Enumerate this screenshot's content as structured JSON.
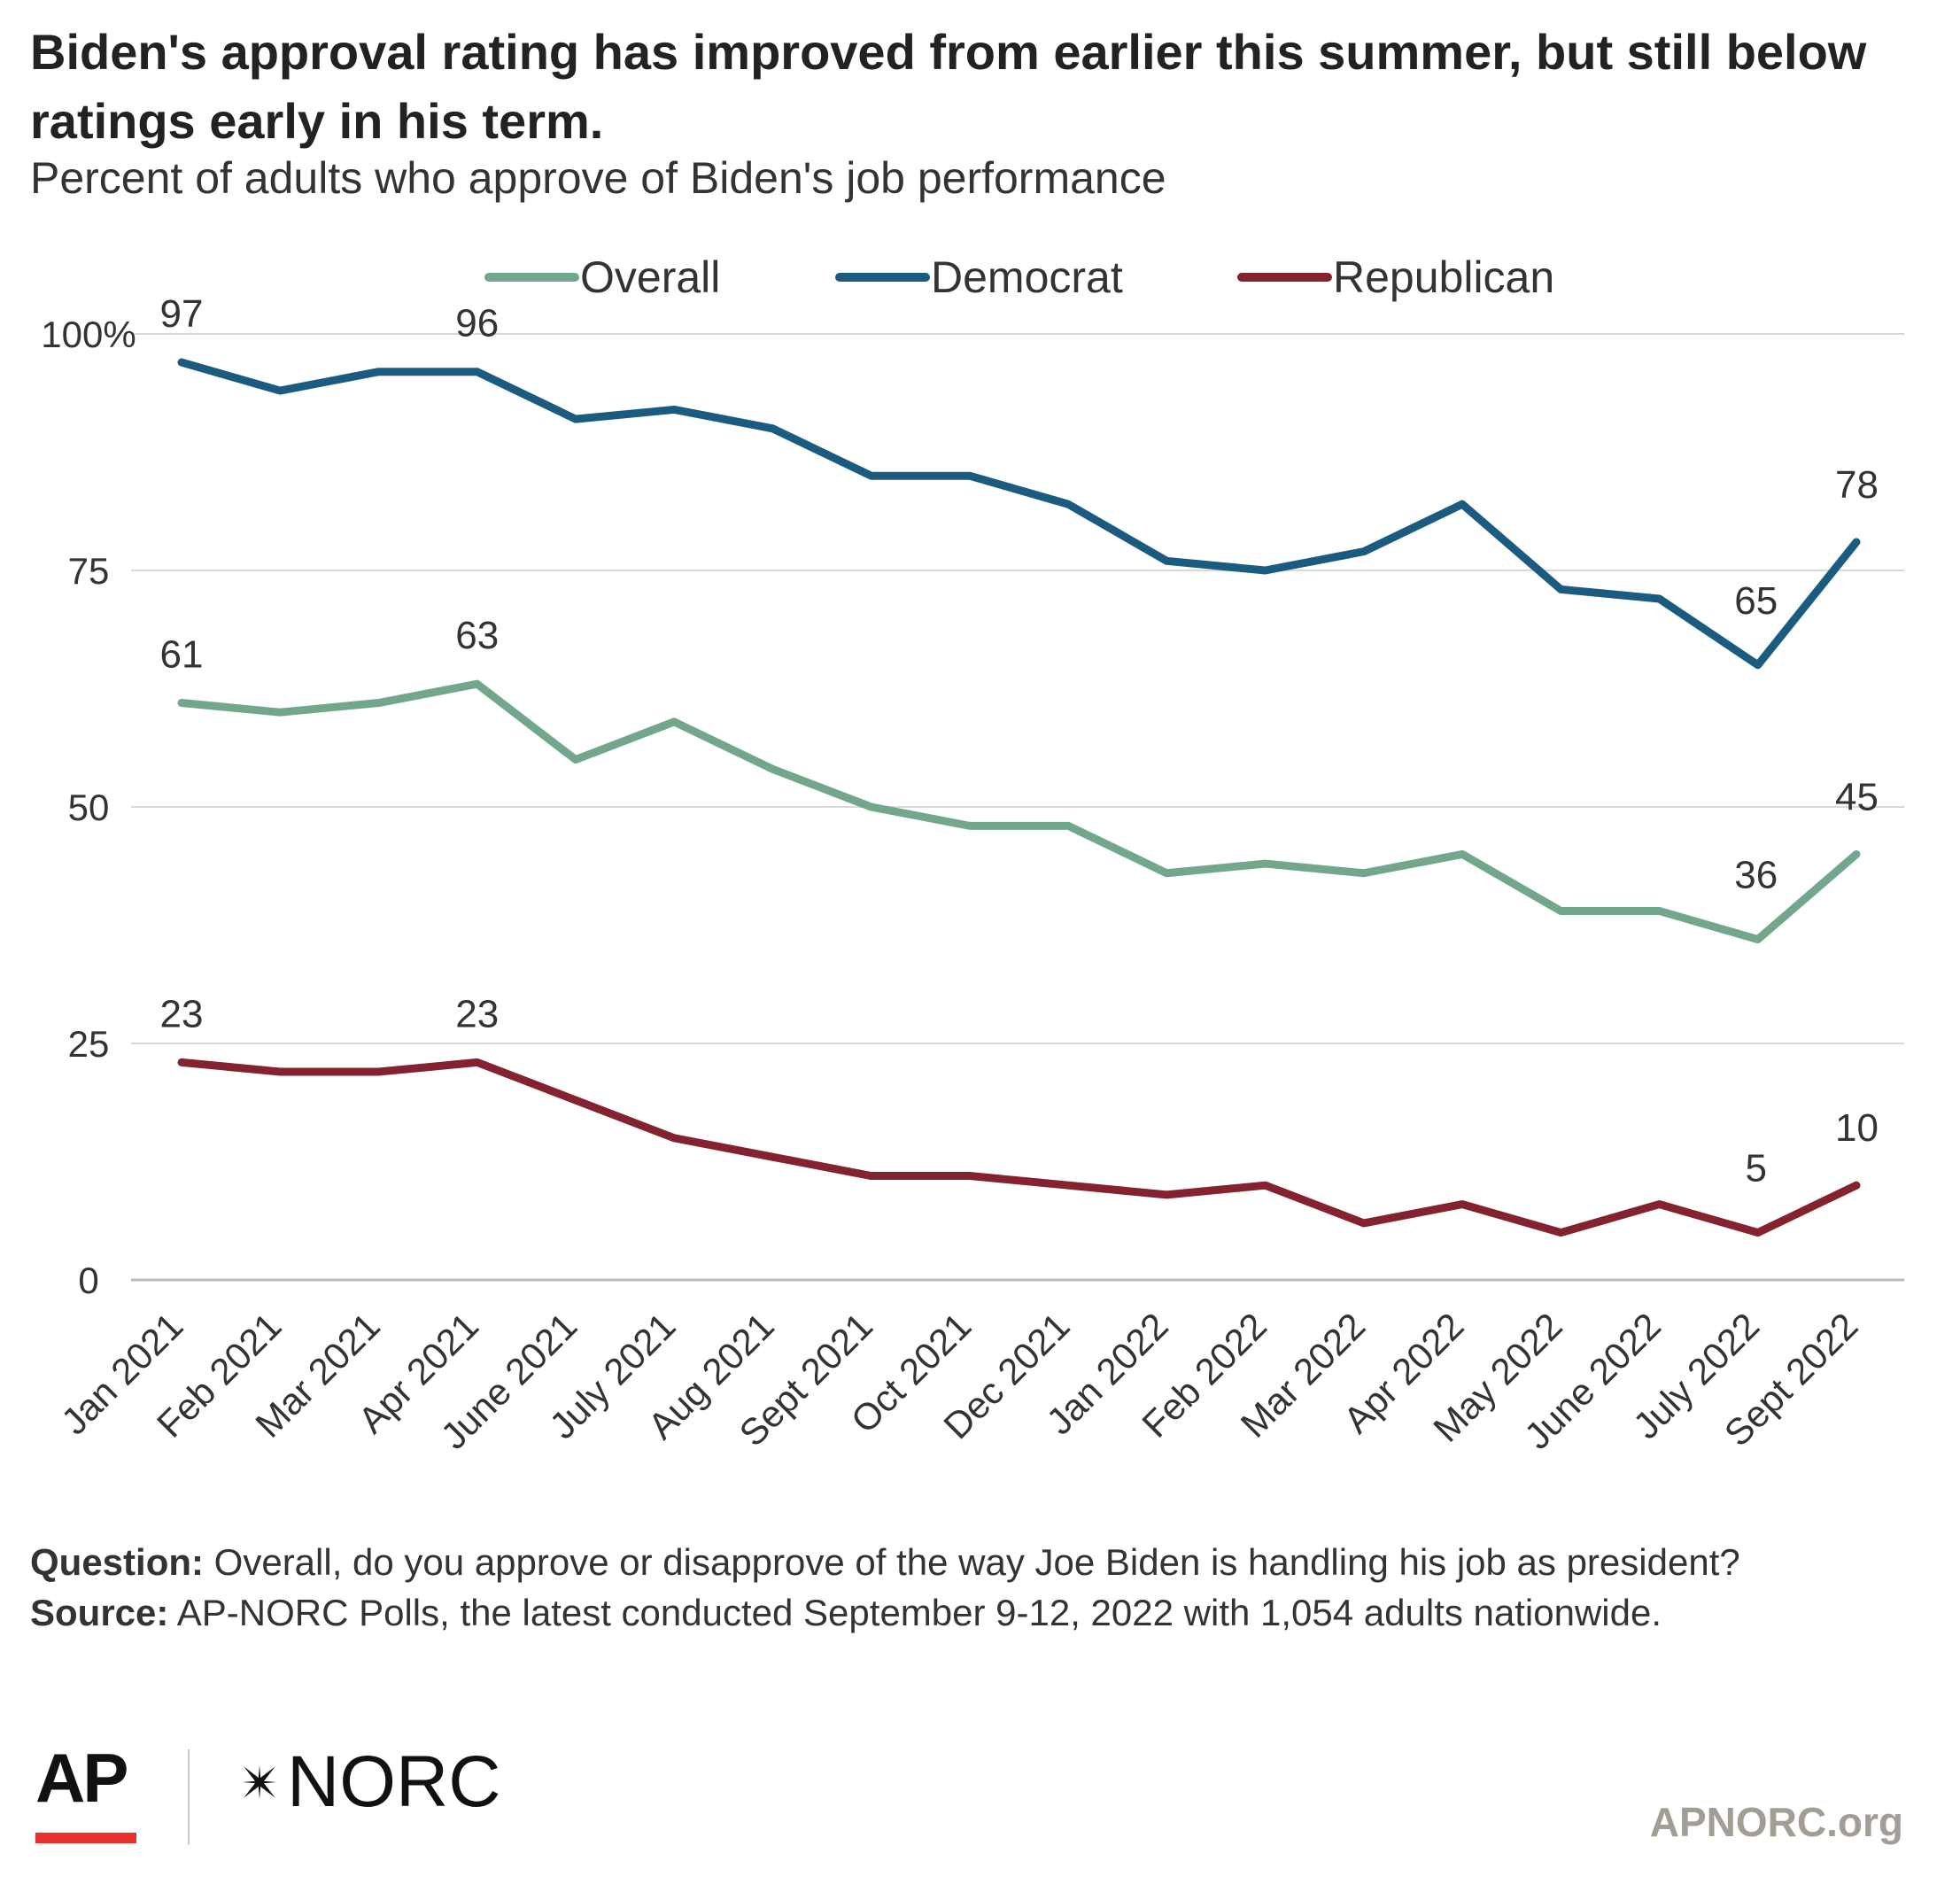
{
  "title": "Biden's approval rating has improved from earlier this summer, but still below ratings early in his term.",
  "subtitle": "Percent of adults who approve of Biden's job performance",
  "notes": {
    "question_label": "Question:",
    "question_text": " Overall, do you approve or disapprove of the way Joe Biden is handling his job as president?",
    "source_label": "Source:",
    "source_text": " AP-NORC Polls, the latest conducted September 9-12, 2022 with 1,054 adults nationwide."
  },
  "logos": {
    "ap": "AP",
    "norc": "NORC",
    "norc_icon": "star-icon",
    "site": "APNORC.org"
  },
  "chart_data": {
    "type": "line",
    "title": "Biden's approval rating has improved from earlier this summer, but still below ratings early in his term.",
    "subtitle": "Percent of adults who approve of Biden's job performance",
    "xlabel": "",
    "ylabel": "",
    "ylim": [
      0,
      100
    ],
    "yticks": [
      0,
      25,
      50,
      75,
      100
    ],
    "ytick_labels": [
      "0",
      "25",
      "50",
      "75",
      "100%"
    ],
    "grid": true,
    "legend_position": "top-center",
    "categories": [
      "Jan 2021",
      "Feb 2021",
      "Mar 2021",
      "Apr 2021",
      "June 2021",
      "July 2021",
      "Aug 2021",
      "Sept 2021",
      "Oct 2021",
      "Dec 2021",
      "Jan 2022",
      "Feb 2022",
      "Mar 2022",
      "Apr 2022",
      "May 2022",
      "June 2022",
      "July 2022",
      "Sept 2022"
    ],
    "series": [
      {
        "name": "Overall",
        "color": "#73a78b",
        "values": [
          61,
          60,
          61,
          63,
          55,
          59,
          54,
          50,
          48,
          48,
          43,
          44,
          43,
          45,
          39,
          39,
          36,
          45
        ],
        "labels": [
          {
            "index": 0,
            "text": "61"
          },
          {
            "index": 3,
            "text": "63"
          },
          {
            "index": 16,
            "text": "36"
          },
          {
            "index": 17,
            "text": "45"
          }
        ]
      },
      {
        "name": "Democrat",
        "color": "#1c5b80",
        "values": [
          97,
          94,
          96,
          96,
          91,
          92,
          90,
          85,
          85,
          82,
          76,
          75,
          77,
          82,
          73,
          72,
          65,
          78
        ],
        "labels": [
          {
            "index": 0,
            "text": "97"
          },
          {
            "index": 3,
            "text": "96"
          },
          {
            "index": 16,
            "text": "65"
          },
          {
            "index": 17,
            "text": "78"
          }
        ]
      },
      {
        "name": "Republican",
        "color": "#84232f",
        "values": [
          23,
          22,
          22,
          23,
          19,
          15,
          13,
          11,
          11,
          10,
          9,
          10,
          6,
          8,
          5,
          8,
          5,
          10
        ],
        "labels": [
          {
            "index": 0,
            "text": "23"
          },
          {
            "index": 3,
            "text": "23"
          },
          {
            "index": 16,
            "text": "5"
          },
          {
            "index": 17,
            "text": "10"
          }
        ]
      }
    ]
  }
}
